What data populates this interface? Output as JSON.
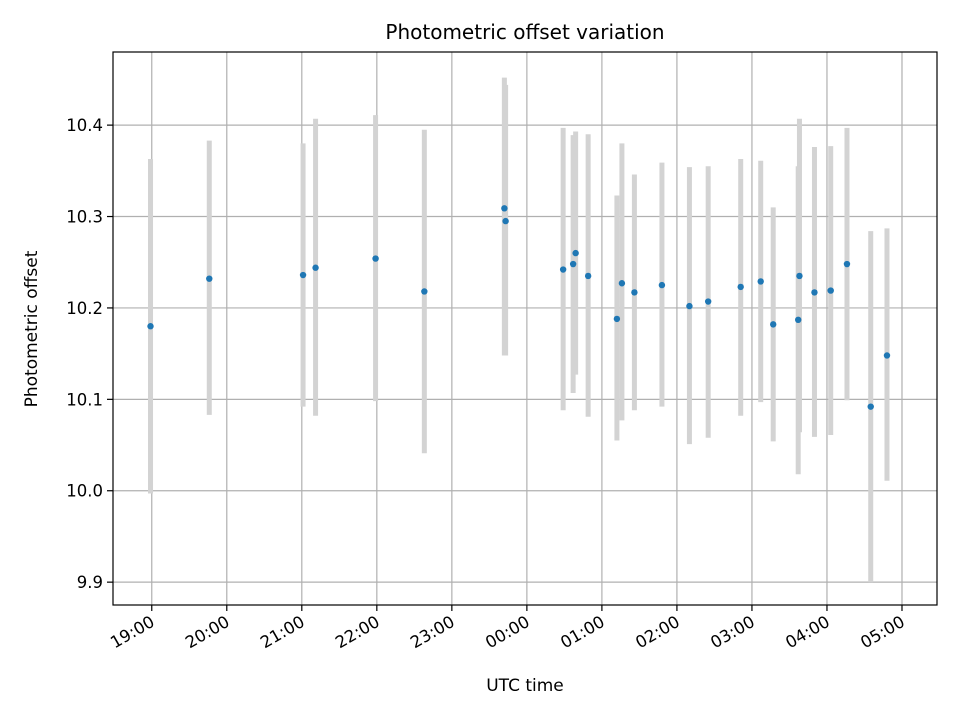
{
  "chart_data": {
    "type": "scatter",
    "title": "Photometric offset variation",
    "xlabel": "UTC time",
    "ylabel": "Photometric offset",
    "grid": true,
    "legend": "none",
    "colors": {
      "point": "#1f77b4",
      "errorbar": "#d3d3d3",
      "grid": "#b0b0b0",
      "axes": "#000000"
    },
    "xlim": [
      "18:29",
      "05:28"
    ],
    "ylim": [
      9.875,
      10.48
    ],
    "x_ticks": [
      "19:00",
      "20:00",
      "21:00",
      "22:00",
      "23:00",
      "00:00",
      "01:00",
      "02:00",
      "03:00",
      "04:00",
      "05:00"
    ],
    "y_ticks": [
      "9.9",
      "10.0",
      "10.1",
      "10.2",
      "10.3",
      "10.4"
    ],
    "x_time_unit": "HH:MM",
    "points": [
      {
        "x": "18:59",
        "y": 10.18,
        "low": 9.997,
        "high": 10.363
      },
      {
        "x": "19:46",
        "y": 10.232,
        "low": 10.083,
        "high": 10.383
      },
      {
        "x": "21:01",
        "y": 10.236,
        "low": 10.092,
        "high": 10.38
      },
      {
        "x": "21:11",
        "y": 10.244,
        "low": 10.082,
        "high": 10.407
      },
      {
        "x": "21:59",
        "y": 10.254,
        "low": 10.098,
        "high": 10.411
      },
      {
        "x": "22:38",
        "y": 10.218,
        "low": 10.041,
        "high": 10.395
      },
      {
        "x": "23:42",
        "y": 10.309,
        "low": 10.148,
        "high": 10.452
      },
      {
        "x": "23:43",
        "y": 10.295,
        "low": 10.148,
        "high": 10.444
      },
      {
        "x": "00:29",
        "y": 10.242,
        "low": 10.088,
        "high": 10.397
      },
      {
        "x": "00:37",
        "y": 10.248,
        "low": 10.107,
        "high": 10.389
      },
      {
        "x": "00:39",
        "y": 10.26,
        "low": 10.127,
        "high": 10.393
      },
      {
        "x": "00:49",
        "y": 10.235,
        "low": 10.081,
        "high": 10.39
      },
      {
        "x": "01:12",
        "y": 10.188,
        "low": 10.055,
        "high": 10.323
      },
      {
        "x": "01:16",
        "y": 10.227,
        "low": 10.077,
        "high": 10.38
      },
      {
        "x": "01:26",
        "y": 10.217,
        "low": 10.088,
        "high": 10.346
      },
      {
        "x": "01:48",
        "y": 10.225,
        "low": 10.092,
        "high": 10.359
      },
      {
        "x": "02:10",
        "y": 10.202,
        "low": 10.051,
        "high": 10.354
      },
      {
        "x": "02:25",
        "y": 10.207,
        "low": 10.058,
        "high": 10.355
      },
      {
        "x": "02:51",
        "y": 10.223,
        "low": 10.082,
        "high": 10.363
      },
      {
        "x": "03:07",
        "y": 10.229,
        "low": 10.097,
        "high": 10.361
      },
      {
        "x": "03:17",
        "y": 10.182,
        "low": 10.054,
        "high": 10.31
      },
      {
        "x": "03:37",
        "y": 10.187,
        "low": 10.018,
        "high": 10.355
      },
      {
        "x": "03:38",
        "y": 10.235,
        "low": 10.064,
        "high": 10.407
      },
      {
        "x": "03:50",
        "y": 10.217,
        "low": 10.059,
        "high": 10.376
      },
      {
        "x": "04:03",
        "y": 10.219,
        "low": 10.061,
        "high": 10.377
      },
      {
        "x": "04:16",
        "y": 10.248,
        "low": 10.099,
        "high": 10.397
      },
      {
        "x": "04:35",
        "y": 10.092,
        "low": 9.9,
        "high": 10.284
      },
      {
        "x": "04:48",
        "y": 10.148,
        "low": 10.011,
        "high": 10.287
      }
    ]
  }
}
